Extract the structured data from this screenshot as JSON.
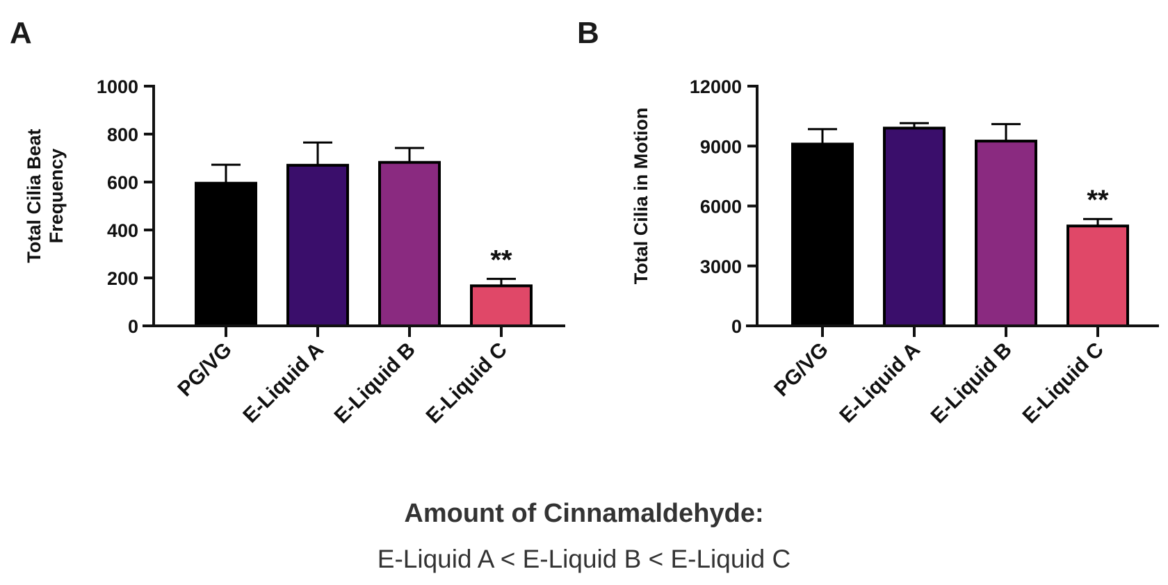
{
  "colors": {
    "PG/VG": "#000000",
    "E-Liquid A": "#3a0e6b",
    "E-Liquid B": "#8a2a80",
    "E-Liquid C": "#e04868",
    "axis": "#111111"
  },
  "caption": {
    "title": "Amount of Cinnamaldehyde:",
    "text": "E-Liquid A < E-Liquid B < E-Liquid C"
  },
  "chart_data": [
    {
      "panel": "A",
      "type": "bar",
      "categories": [
        "PG/VG",
        "E-Liquid A",
        "E-Liquid B",
        "E-Liquid C"
      ],
      "values": [
        595,
        670,
        682,
        167
      ],
      "error_upper": [
        672,
        765,
        742,
        196
      ],
      "annotations": [
        "",
        "",
        "",
        "**"
      ],
      "ylabel": [
        "Total Cilia Beat",
        "Frequency"
      ],
      "ylim": [
        0,
        1000
      ],
      "yticks": [
        "0",
        "200",
        "400",
        "600",
        "800",
        "1000"
      ],
      "grid": false
    },
    {
      "panel": "B",
      "type": "bar",
      "categories": [
        "PG/VG",
        "E-Liquid A",
        "E-Liquid B",
        "E-Liquid C"
      ],
      "values": [
        9100,
        9900,
        9250,
        5000
      ],
      "error_upper": [
        9850,
        10150,
        10100,
        5350
      ],
      "annotations": [
        "",
        "",
        "",
        "**"
      ],
      "ylabel": [
        "Total Cilia in Motion"
      ],
      "ylim": [
        0,
        12000
      ],
      "yticks": [
        "0",
        "3000",
        "6000",
        "9000",
        "12000"
      ],
      "grid": false
    }
  ]
}
